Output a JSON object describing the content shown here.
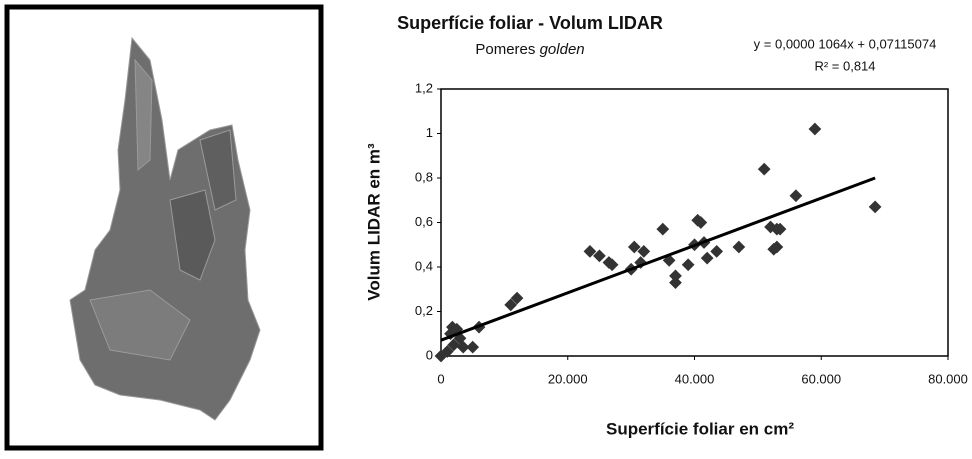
{
  "chart_data": {
    "type": "scatter",
    "title": "Superfície foliar - Volum LIDAR",
    "subtitle": [
      "Pomeres",
      "golden"
    ],
    "annotations": [
      "y = 0,0000 1064x + 0,07115074",
      "R² = 0,814"
    ],
    "x_label": "Superfície foliar en cm²",
    "y_label": "Volum LIDAR  en m³",
    "color": "#333333",
    "trendline": {
      "slope": 1.064e-05,
      "intercept": 0.07115074
    },
    "xlim": [
      0,
      80000
    ],
    "ylim": [
      0,
      1.2
    ],
    "xticks": [
      0,
      {
        "value": 20000,
        "label": "20.000"
      },
      {
        "value": 40000,
        "label": "40.000"
      },
      {
        "value": 60000,
        "label": "60.000"
      },
      {
        "value": 80000,
        "label": "80.000"
      }
    ],
    "yticks": [
      0,
      {
        "value": 0.2,
        "label": "0,2"
      },
      {
        "value": 0.4,
        "label": "0,4"
      },
      {
        "value": 0.6,
        "label": "0,6"
      },
      {
        "value": 0.8,
        "label": "0,8"
      },
      {
        "value": 1,
        "label": "1"
      },
      {
        "value": 1.2,
        "label": "1,2"
      }
    ],
    "x": [
      0,
      1000,
      1500,
      1800,
      2000,
      2500,
      3000,
      3500,
      5000,
      6000,
      11000,
      12000,
      23500,
      25000,
      26500,
      27000,
      30000,
      30500,
      31500,
      32000,
      35000,
      36000,
      37000,
      37000,
      39000,
      40000,
      40500,
      41000,
      41500,
      42000,
      43500,
      47000,
      51000,
      52000,
      52500,
      53000,
      53000,
      53500,
      56000,
      59000,
      68500
    ],
    "values": [
      0,
      0.02,
      0.1,
      0.13,
      0.05,
      0.12,
      0.08,
      0.04,
      0.04,
      0.13,
      0.23,
      0.26,
      0.47,
      0.45,
      0.42,
      0.41,
      0.39,
      0.49,
      0.42,
      0.47,
      0.57,
      0.43,
      0.33,
      0.36,
      0.41,
      0.5,
      0.61,
      0.6,
      0.51,
      0.44,
      0.47,
      0.49,
      0.84,
      0.58,
      0.48,
      0.57,
      0.49,
      0.57,
      0.72,
      1.02,
      0.67
    ]
  }
}
